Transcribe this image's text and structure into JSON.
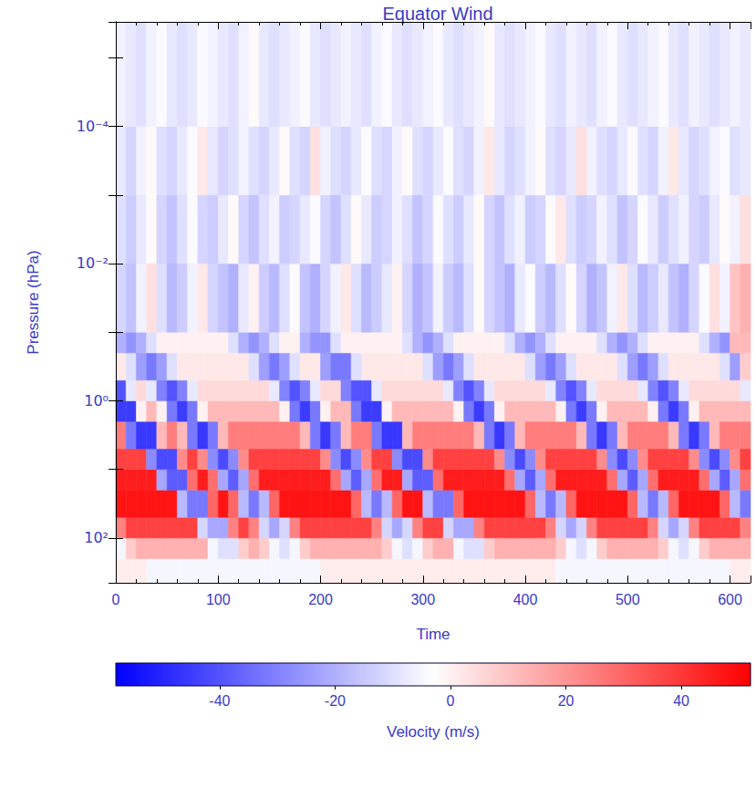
{
  "chart_data": {
    "type": "heatmap",
    "title": "Equator Wind",
    "xlabel": "Time",
    "ylabel": "Pressure (hPa)",
    "log": "y",
    "xlim": [
      0,
      620
    ],
    "xticks": [
      0,
      100,
      200,
      300,
      400,
      500,
      600
    ],
    "ylim": [
      3e-06,
      450
    ],
    "yticks": [
      {
        "value": 0.0001,
        "label": "10⁻⁴"
      },
      {
        "value": 0.01,
        "label": "10⁻²"
      },
      {
        "value": 1,
        "label": "10⁰"
      },
      {
        "value": 100,
        "label": "10²"
      }
    ],
    "x_bins": [
      0,
      10,
      20,
      30,
      40,
      50,
      60,
      70,
      80,
      90,
      100,
      110,
      120,
      130,
      140,
      150,
      160,
      170,
      180,
      190,
      200,
      210,
      220,
      230,
      240,
      250,
      260,
      270,
      280,
      290,
      300,
      310,
      320,
      330,
      340,
      350,
      360,
      370,
      380,
      390,
      400,
      410,
      420,
      430,
      440,
      450,
      460,
      470,
      480,
      490,
      500,
      510,
      520,
      530,
      540,
      550,
      560,
      570,
      580,
      590,
      600,
      610,
      620
    ],
    "y_bins": [
      450,
      200,
      100,
      50,
      20,
      10,
      5,
      2,
      1,
      0.5,
      0.2,
      0.1,
      0.01,
      0.001,
      0.0001,
      3e-06
    ],
    "cells": [
      [
        1,
        1,
        1,
        -5,
        -5,
        -5,
        -5,
        -5,
        -5,
        -5,
        -5,
        -5,
        -5,
        -5,
        -5,
        -5,
        -5,
        -5,
        -5,
        -5,
        1,
        1,
        1,
        1,
        1,
        1,
        1,
        1,
        1,
        1,
        1,
        1,
        1,
        1,
        1,
        1,
        1,
        1,
        1,
        1,
        1,
        1,
        1,
        -5,
        -5,
        -5,
        -5,
        -5,
        -5,
        -5,
        -5,
        -5,
        -5,
        -5,
        -5,
        -5,
        -5,
        -5,
        -5,
        -5,
        1,
        1
      ],
      [
        -5,
        8,
        14,
        14,
        14,
        14,
        14,
        14,
        14,
        -5,
        -10,
        -10,
        8,
        14,
        8,
        -5,
        -10,
        -5,
        8,
        14,
        14,
        14,
        14,
        14,
        14,
        14,
        8,
        -5,
        -10,
        -5,
        8,
        14,
        14,
        -5,
        -10,
        -10,
        8,
        14,
        14,
        14,
        14,
        14,
        14,
        8,
        -5,
        -10,
        -5,
        8,
        14,
        14,
        14,
        14,
        14,
        8,
        -5,
        -10,
        -5,
        8,
        14,
        14,
        14,
        14
      ],
      [
        24,
        38,
        38,
        38,
        38,
        38,
        38,
        38,
        -12,
        -22,
        -22,
        24,
        38,
        24,
        -12,
        -22,
        -12,
        24,
        38,
        38,
        38,
        38,
        38,
        38,
        38,
        24,
        -12,
        -22,
        -12,
        24,
        38,
        38,
        -12,
        -22,
        -22,
        24,
        38,
        38,
        38,
        38,
        38,
        38,
        24,
        -12,
        -22,
        -12,
        24,
        38,
        38,
        38,
        38,
        38,
        24,
        -12,
        -22,
        -12,
        24,
        38,
        38,
        38,
        38,
        24
      ],
      [
        48,
        48,
        48,
        48,
        48,
        48,
        -18,
        -32,
        -32,
        30,
        48,
        30,
        -18,
        -32,
        -18,
        30,
        48,
        48,
        48,
        48,
        48,
        48,
        48,
        30,
        -18,
        -32,
        -18,
        30,
        48,
        48,
        -18,
        -32,
        -32,
        30,
        48,
        48,
        48,
        48,
        48,
        48,
        30,
        -18,
        -32,
        -18,
        30,
        48,
        48,
        48,
        48,
        48,
        30,
        -18,
        -32,
        -18,
        30,
        48,
        48,
        48,
        48,
        30,
        -18,
        -32
      ],
      [
        46,
        46,
        46,
        46,
        -22,
        -38,
        -38,
        28,
        46,
        28,
        -22,
        -38,
        -22,
        28,
        46,
        46,
        46,
        46,
        46,
        46,
        46,
        28,
        -22,
        -38,
        -22,
        28,
        46,
        46,
        -22,
        -38,
        -38,
        28,
        46,
        46,
        46,
        46,
        46,
        46,
        28,
        -22,
        -38,
        -22,
        28,
        46,
        46,
        46,
        46,
        46,
        28,
        -22,
        -38,
        -22,
        28,
        46,
        46,
        46,
        46,
        28,
        -22,
        -38,
        -22,
        28
      ],
      [
        38,
        38,
        38,
        -28,
        -42,
        -42,
        22,
        38,
        22,
        -28,
        -42,
        -28,
        22,
        38,
        38,
        38,
        38,
        38,
        38,
        38,
        22,
        -28,
        -42,
        -28,
        22,
        38,
        38,
        -28,
        -42,
        -42,
        22,
        38,
        38,
        38,
        38,
        38,
        38,
        22,
        -28,
        -42,
        -28,
        22,
        38,
        38,
        38,
        38,
        38,
        22,
        -28,
        -42,
        -28,
        22,
        38,
        38,
        38,
        38,
        22,
        -28,
        -42,
        -28,
        22,
        38
      ],
      [
        25,
        -32,
        -46,
        -46,
        12,
        25,
        12,
        -32,
        -46,
        -32,
        12,
        25,
        25,
        25,
        25,
        25,
        25,
        25,
        12,
        -32,
        -46,
        -32,
        12,
        25,
        25,
        -32,
        -46,
        -46,
        12,
        25,
        25,
        25,
        25,
        25,
        25,
        12,
        -32,
        -46,
        -32,
        12,
        25,
        25,
        25,
        25,
        25,
        12,
        -32,
        -46,
        -32,
        12,
        25,
        25,
        25,
        25,
        12,
        -32,
        -46,
        -32,
        12,
        25,
        25,
        25
      ],
      [
        -45,
        -45,
        0,
        12,
        0,
        -32,
        -45,
        -32,
        0,
        12,
        12,
        12,
        12,
        12,
        12,
        12,
        0,
        -32,
        -45,
        -32,
        0,
        12,
        12,
        -32,
        -45,
        -45,
        0,
        12,
        12,
        12,
        12,
        12,
        12,
        0,
        -32,
        -45,
        -32,
        0,
        12,
        12,
        12,
        12,
        12,
        0,
        -32,
        -45,
        -32,
        0,
        12,
        12,
        12,
        12,
        0,
        -32,
        -45,
        -32,
        0,
        12,
        12,
        12,
        12,
        12
      ],
      [
        -40,
        -8,
        5,
        -8,
        -30,
        -40,
        -30,
        -8,
        5,
        5,
        5,
        5,
        5,
        5,
        5,
        -8,
        -30,
        -40,
        -30,
        -8,
        5,
        5,
        -30,
        -40,
        -40,
        -8,
        5,
        5,
        5,
        5,
        5,
        5,
        -8,
        -30,
        -40,
        -30,
        -8,
        5,
        5,
        5,
        5,
        5,
        -8,
        -30,
        -40,
        -30,
        -8,
        5,
        5,
        5,
        5,
        -8,
        -30,
        -40,
        -30,
        -8,
        5,
        5,
        5,
        5,
        5,
        -8
      ],
      [
        2,
        -10,
        -24,
        -32,
        -24,
        -10,
        2,
        2,
        2,
        2,
        2,
        2,
        2,
        -10,
        -24,
        -32,
        -24,
        -10,
        2,
        2,
        -24,
        -32,
        -32,
        -10,
        2,
        2,
        2,
        2,
        2,
        2,
        -10,
        -24,
        -32,
        -24,
        -10,
        2,
        2,
        2,
        2,
        2,
        -10,
        -24,
        -32,
        -24,
        -10,
        2,
        2,
        2,
        2,
        -10,
        -24,
        -32,
        -24,
        -10,
        2,
        2,
        2,
        2,
        2,
        -10,
        -24,
        8
      ],
      [
        -20,
        -26,
        -20,
        -10,
        0,
        0,
        0,
        0,
        0,
        0,
        0,
        -10,
        -20,
        -26,
        -20,
        -10,
        0,
        0,
        -20,
        -26,
        -26,
        -10,
        0,
        0,
        0,
        0,
        0,
        0,
        -10,
        -20,
        -26,
        -20,
        -10,
        0,
        0,
        0,
        0,
        0,
        -10,
        -20,
        -26,
        -20,
        -10,
        0,
        0,
        0,
        0,
        -10,
        -20,
        -26,
        -20,
        -10,
        0,
        0,
        0,
        0,
        0,
        -10,
        -20,
        -26,
        12,
        12
      ],
      [
        -12,
        -16,
        -6,
        4,
        -10,
        -18,
        -14,
        -6,
        2,
        -12,
        -16,
        -20,
        -8,
        0,
        -14,
        -18,
        -10,
        -4,
        -16,
        -20,
        -12,
        -6,
        2,
        -10,
        -18,
        -14,
        -8,
        0,
        -12,
        -20,
        -16,
        -6,
        -14,
        -18,
        -10,
        -2,
        -12,
        -16,
        -20,
        -8,
        -4,
        -14,
        -18,
        -10,
        -2,
        -12,
        -20,
        -16,
        -6,
        2,
        -10,
        -18,
        -14,
        -8,
        -16,
        -20,
        -12,
        -4,
        4,
        -6,
        10,
        14
      ],
      [
        -10,
        -14,
        -8,
        -2,
        -12,
        -16,
        -10,
        -4,
        -12,
        -14,
        -8,
        -2,
        -12,
        -16,
        -10,
        -6,
        -14,
        -12,
        -8,
        -4,
        -12,
        -16,
        -10,
        -2,
        -8,
        -14,
        -12,
        -6,
        -10,
        -16,
        -12,
        -4,
        -10,
        -14,
        -8,
        -2,
        -12,
        -16,
        -10,
        -6,
        -14,
        -12,
        -4,
        2,
        -10,
        -14,
        -12,
        -6,
        -10,
        -16,
        -12,
        -4,
        -8,
        -14,
        -10,
        -6,
        -12,
        -14,
        -8,
        -2,
        -6,
        4
      ],
      [
        -8,
        -12,
        -6,
        -2,
        -10,
        -12,
        -8,
        -4,
        2,
        -8,
        -12,
        -10,
        -6,
        -10,
        -12,
        -8,
        -2,
        -10,
        -12,
        4,
        -6,
        -10,
        -12,
        -8,
        -4,
        -10,
        -12,
        -6,
        -2,
        -10,
        -12,
        -8,
        -4,
        -10,
        -12,
        -6,
        2,
        -8,
        -12,
        -10,
        -6,
        -2,
        -10,
        -12,
        -8,
        4,
        -6,
        -10,
        -12,
        -8,
        -4,
        -10,
        -12,
        -6,
        2,
        -8,
        -12,
        -10,
        -6,
        -4,
        -10,
        -8
      ],
      [
        -6,
        -8,
        -10,
        -6,
        -4,
        -8,
        -10,
        -8,
        -4,
        -6,
        -8,
        -10,
        -6,
        -2,
        -8,
        -10,
        -8,
        -6,
        -4,
        -8,
        -10,
        -8,
        -6,
        -8,
        -10,
        -6,
        -4,
        -8,
        -10,
        -8,
        -6,
        -4,
        -8,
        -10,
        -8,
        -6,
        -2,
        -8,
        -10,
        -8,
        -6,
        -4,
        -8,
        -10,
        -6,
        -8,
        -10,
        -6,
        -4,
        -8,
        -10,
        -8,
        -6,
        -4,
        -8,
        -10,
        -6,
        -8,
        -10,
        -8,
        -6,
        -8
      ]
    ],
    "colorbar": {
      "label": "Velocity (m/s)",
      "range": [
        -58,
        52
      ],
      "ticks": [
        -40,
        -20,
        0,
        20,
        40
      ],
      "colors": [
        "#0000ff",
        "#ffffff",
        "#ff0000"
      ]
    }
  }
}
